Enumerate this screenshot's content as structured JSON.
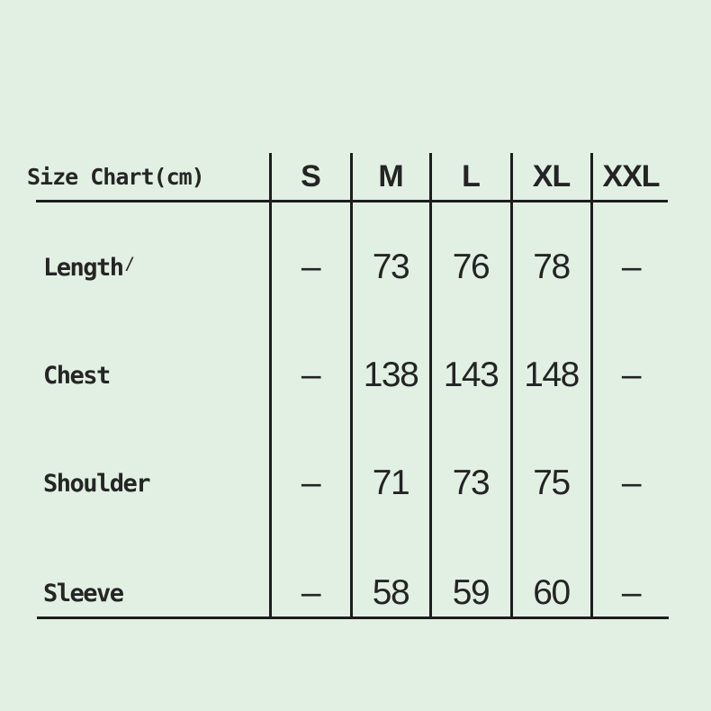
{
  "colors": {
    "background": "#e1f0e3",
    "text": "#252525",
    "line": "#1d1d1d"
  },
  "table": {
    "title": "Size Chart(cm)",
    "columns": [
      "S",
      "M",
      "L",
      "XL",
      "XXL"
    ],
    "rows": [
      {
        "label": "Length",
        "mark": "/",
        "values": [
          "–",
          "73",
          "76",
          "78",
          "–"
        ]
      },
      {
        "label": "Chest",
        "mark": "",
        "values": [
          "–",
          "138",
          "143",
          "148",
          "–"
        ]
      },
      {
        "label": "Shoulder",
        "mark": "",
        "values": [
          "–",
          "71",
          "73",
          "75",
          "–"
        ]
      },
      {
        "label": "Sleeve",
        "mark": "",
        "values": [
          "–",
          "58",
          "59",
          "60",
          "–"
        ]
      }
    ]
  },
  "chart_data": {
    "type": "table",
    "title": "Size Chart(cm)",
    "unit": "cm",
    "columns": [
      "S",
      "M",
      "L",
      "XL",
      "XXL"
    ],
    "row_labels": [
      "Length",
      "Chest",
      "Shoulder",
      "Sleeve"
    ],
    "cells": [
      [
        "–",
        "73",
        "76",
        "78",
        "–"
      ],
      [
        "–",
        "138",
        "143",
        "148",
        "–"
      ],
      [
        "–",
        "71",
        "73",
        "75",
        "–"
      ],
      [
        "–",
        "58",
        "59",
        "60",
        "–"
      ]
    ],
    "numeric": {
      "Length": {
        "M": 73,
        "L": 76,
        "XL": 78
      },
      "Chest": {
        "M": 138,
        "L": 143,
        "XL": 148
      },
      "Shoulder": {
        "M": 71,
        "L": 73,
        "XL": 75
      },
      "Sleeve": {
        "M": 58,
        "L": 59,
        "XL": 60
      }
    }
  }
}
